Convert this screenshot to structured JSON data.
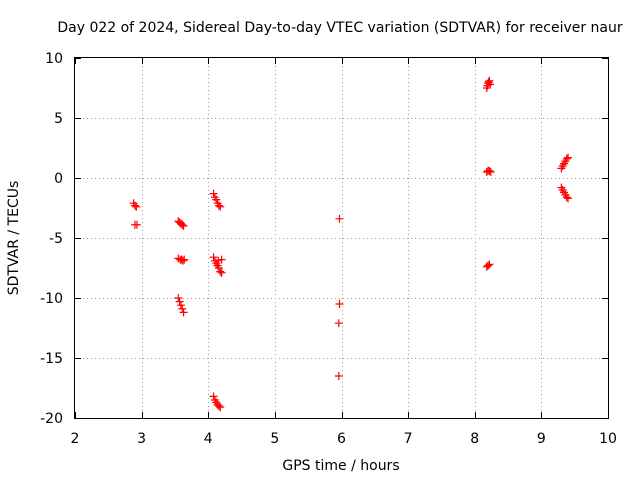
{
  "chart_data": {
    "type": "scatter",
    "title": "Day 022 of 2024, Sidereal Day-to-day VTEC variation (SDTVAR) for receiver naur",
    "xlabel": "GPS time / hours",
    "ylabel": "SDTVAR / TECUs",
    "xlim": [
      2,
      10
    ],
    "ylim": [
      -20,
      10
    ],
    "xticks": [
      2,
      3,
      4,
      5,
      6,
      7,
      8,
      9,
      10
    ],
    "yticks": [
      -20,
      -15,
      -10,
      -5,
      0,
      5,
      10
    ],
    "xtick_labels": [
      "2",
      "3",
      "4",
      "5",
      "6",
      "7",
      "8",
      "9",
      "10"
    ],
    "ytick_labels": [
      "-20",
      "-15",
      "-10",
      "-5",
      "0",
      "5",
      "10"
    ],
    "grid": true,
    "marker": "+",
    "color": "#ff0000",
    "series": [
      {
        "name": "SDTVAR",
        "points": [
          [
            2.88,
            -2.1
          ],
          [
            2.9,
            -2.3
          ],
          [
            2.92,
            -2.4
          ],
          [
            2.9,
            -3.9
          ],
          [
            2.93,
            -3.9
          ],
          [
            3.55,
            -3.6
          ],
          [
            3.57,
            -3.7
          ],
          [
            3.59,
            -3.8
          ],
          [
            3.61,
            -3.9
          ],
          [
            3.63,
            -4.0
          ],
          [
            3.55,
            -6.7
          ],
          [
            3.58,
            -6.8
          ],
          [
            3.6,
            -6.8
          ],
          [
            3.62,
            -6.9
          ],
          [
            3.64,
            -6.8
          ],
          [
            3.55,
            -10.0
          ],
          [
            3.57,
            -10.3
          ],
          [
            3.59,
            -10.6
          ],
          [
            3.61,
            -10.9
          ],
          [
            3.63,
            -11.2
          ],
          [
            4.08,
            -1.3
          ],
          [
            4.1,
            -1.6
          ],
          [
            4.12,
            -1.8
          ],
          [
            4.14,
            -2.1
          ],
          [
            4.16,
            -2.3
          ],
          [
            4.18,
            -2.4
          ],
          [
            4.08,
            -6.6
          ],
          [
            4.1,
            -6.9
          ],
          [
            4.12,
            -7.1
          ],
          [
            4.14,
            -7.3
          ],
          [
            4.16,
            -7.5
          ],
          [
            4.18,
            -7.8
          ],
          [
            4.2,
            -6.8
          ],
          [
            4.15,
            -6.9
          ],
          [
            4.2,
            -7.9
          ],
          [
            4.08,
            -18.2
          ],
          [
            4.1,
            -18.5
          ],
          [
            4.12,
            -18.7
          ],
          [
            4.14,
            -18.9
          ],
          [
            4.16,
            -19.0
          ],
          [
            4.18,
            -19.1
          ],
          [
            5.97,
            -3.4
          ],
          [
            5.97,
            -10.5
          ],
          [
            5.96,
            -12.1
          ],
          [
            5.96,
            -16.5
          ],
          [
            8.18,
            7.5
          ],
          [
            8.19,
            7.7
          ],
          [
            8.2,
            7.9
          ],
          [
            8.21,
            8.0
          ],
          [
            8.22,
            8.1
          ],
          [
            8.23,
            7.8
          ],
          [
            8.18,
            0.5
          ],
          [
            8.2,
            0.6
          ],
          [
            8.22,
            0.6
          ],
          [
            8.24,
            0.5
          ],
          [
            8.18,
            -7.4
          ],
          [
            8.2,
            -7.3
          ],
          [
            8.22,
            -7.2
          ],
          [
            9.3,
            0.8
          ],
          [
            9.32,
            1.0
          ],
          [
            9.34,
            1.2
          ],
          [
            9.36,
            1.4
          ],
          [
            9.38,
            1.6
          ],
          [
            9.4,
            1.7
          ],
          [
            9.3,
            -0.8
          ],
          [
            9.32,
            -1.0
          ],
          [
            9.34,
            -1.2
          ],
          [
            9.36,
            -1.4
          ],
          [
            9.38,
            -1.6
          ],
          [
            9.4,
            -1.7
          ]
        ]
      }
    ]
  }
}
